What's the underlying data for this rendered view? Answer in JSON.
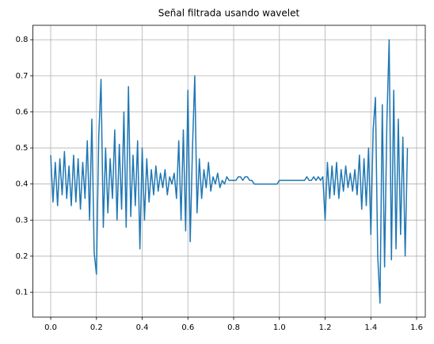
{
  "chart_data": {
    "type": "line",
    "title": "Señal filtrada usando wavelet",
    "x": [
      0,
      0.01,
      0.02,
      0.03,
      0.04,
      0.05,
      0.06,
      0.07,
      0.08,
      0.09,
      0.1,
      0.11,
      0.12,
      0.13,
      0.14,
      0.15,
      0.16,
      0.17,
      0.18,
      0.19,
      0.2,
      0.21,
      0.22,
      0.23,
      0.24,
      0.25,
      0.26,
      0.27,
      0.28,
      0.29,
      0.3,
      0.31,
      0.32,
      0.33,
      0.34,
      0.35,
      0.36,
      0.37,
      0.38,
      0.39,
      0.4,
      0.41,
      0.42,
      0.43,
      0.44,
      0.45,
      0.46,
      0.47,
      0.48,
      0.49,
      0.5,
      0.51,
      0.52,
      0.53,
      0.54,
      0.55,
      0.56,
      0.57,
      0.58,
      0.59,
      0.6,
      0.61,
      0.62,
      0.63,
      0.64,
      0.65,
      0.66,
      0.67,
      0.68,
      0.69,
      0.7,
      0.71,
      0.72,
      0.73,
      0.74,
      0.75,
      0.76,
      0.77,
      0.78,
      0.79,
      0.8,
      0.81,
      0.82,
      0.83,
      0.84,
      0.85,
      0.86,
      0.87,
      0.88,
      0.89,
      0.9,
      0.91,
      0.92,
      0.93,
      0.94,
      0.95,
      0.96,
      0.97,
      0.98,
      0.99,
      1,
      1.01,
      1.02,
      1.03,
      1.04,
      1.05,
      1.06,
      1.07,
      1.08,
      1.09,
      1.1,
      1.11,
      1.12,
      1.13,
      1.14,
      1.15,
      1.16,
      1.17,
      1.18,
      1.19,
      1.2,
      1.21,
      1.22,
      1.23,
      1.24,
      1.25,
      1.26,
      1.27,
      1.28,
      1.29,
      1.3,
      1.31,
      1.32,
      1.33,
      1.34,
      1.35,
      1.36,
      1.37,
      1.38,
      1.39,
      1.4,
      1.41,
      1.42,
      1.43,
      1.44,
      1.45,
      1.46,
      1.47,
      1.48,
      1.49,
      1.5,
      1.51,
      1.52,
      1.53,
      1.54,
      1.55,
      1.56
    ],
    "series": [
      {
        "color": "#1f77b4",
        "values": [
          0.48,
          0.35,
          0.46,
          0.34,
          0.47,
          0.37,
          0.49,
          0.36,
          0.45,
          0.34,
          0.48,
          0.35,
          0.47,
          0.33,
          0.46,
          0.36,
          0.52,
          0.3,
          0.58,
          0.21,
          0.15,
          0.53,
          0.69,
          0.28,
          0.5,
          0.32,
          0.47,
          0.36,
          0.55,
          0.3,
          0.51,
          0.33,
          0.6,
          0.28,
          0.67,
          0.31,
          0.48,
          0.34,
          0.52,
          0.22,
          0.5,
          0.3,
          0.47,
          0.35,
          0.44,
          0.37,
          0.45,
          0.38,
          0.43,
          0.39,
          0.44,
          0.37,
          0.42,
          0.4,
          0.43,
          0.36,
          0.52,
          0.3,
          0.55,
          0.27,
          0.66,
          0.24,
          0.5,
          0.7,
          0.32,
          0.47,
          0.36,
          0.44,
          0.39,
          0.46,
          0.38,
          0.42,
          0.4,
          0.43,
          0.39,
          0.41,
          0.4,
          0.42,
          0.41,
          0.41,
          0.41,
          0.41,
          0.42,
          0.42,
          0.41,
          0.42,
          0.42,
          0.41,
          0.41,
          0.4,
          0.4,
          0.4,
          0.4,
          0.4,
          0.4,
          0.4,
          0.4,
          0.4,
          0.4,
          0.4,
          0.41,
          0.41,
          0.41,
          0.41,
          0.41,
          0.41,
          0.41,
          0.41,
          0.41,
          0.41,
          0.41,
          0.41,
          0.42,
          0.41,
          0.41,
          0.42,
          0.41,
          0.42,
          0.41,
          0.42,
          0.3,
          0.46,
          0.36,
          0.45,
          0.37,
          0.46,
          0.36,
          0.44,
          0.38,
          0.45,
          0.39,
          0.43,
          0.38,
          0.44,
          0.37,
          0.48,
          0.33,
          0.47,
          0.34,
          0.5,
          0.26,
          0.55,
          0.64,
          0.2,
          0.07,
          0.62,
          0.17,
          0.57,
          0.8,
          0.19,
          0.66,
          0.22,
          0.58,
          0.26,
          0.53,
          0.2,
          0.5
        ]
      }
    ],
    "xlim": [
      -0.078,
      1.638
    ],
    "xticks": [
      {
        "value": 0,
        "label": "0.0"
      },
      0.2,
      0.4,
      0.6,
      0.8,
      {
        "value": 1,
        "label": "1.0"
      },
      1.2,
      1.4,
      1.6
    ],
    "ylim": [
      0.031,
      0.84
    ],
    "yticks": [
      0.1,
      0.2,
      0.3,
      0.4,
      0.5,
      0.6,
      0.7,
      0.8
    ],
    "grid": true
  }
}
